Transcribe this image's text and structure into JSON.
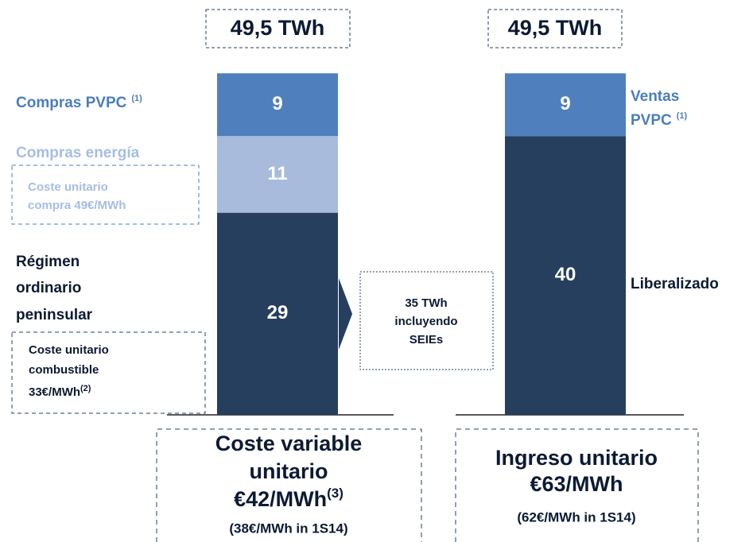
{
  "chart_data": {
    "type": "stacked_bar",
    "bars": [
      {
        "total_label": "49,5 TWh",
        "segments": [
          {
            "value": 29,
            "color": "#263f5e"
          },
          {
            "value": 11,
            "color": "#a8bbdc"
          },
          {
            "value": 9,
            "color": "#4f80bd"
          }
        ]
      },
      {
        "total_label": "49,5 TWh",
        "segments": [
          {
            "value": 40,
            "color": "#263f5e"
          },
          {
            "value": 9,
            "color": "#4f80bd"
          }
        ]
      }
    ]
  },
  "labels": {
    "compras_pvpc": {
      "text": "Compras PVPC",
      "note": "(1)"
    },
    "compras_energia": "Compras energía",
    "coste_compra": [
      "Coste unitario",
      "compra 49€/MWh"
    ],
    "regimen": [
      "Régimen",
      "ordinario",
      "peninsular"
    ],
    "coste_combustible": [
      "Coste unitario",
      "combustible",
      "33€/MWh",
      "(2)"
    ],
    "seies": [
      "35 TWh",
      "incluyendo",
      "SEIEs"
    ],
    "ventas_pvpc": [
      "Ventas",
      "PVPC",
      "(1)"
    ],
    "liberalizado": "Liberalizado"
  },
  "summary_left": {
    "lines": [
      "Coste variable",
      "unitario",
      "€42/MWh",
      "(3)"
    ],
    "note": "(38€/MWh in 1S14)"
  },
  "summary_right": {
    "lines": [
      "Ingreso unitario",
      "€63/MWh"
    ],
    "note": "(62€/MWh in 1S14)"
  }
}
